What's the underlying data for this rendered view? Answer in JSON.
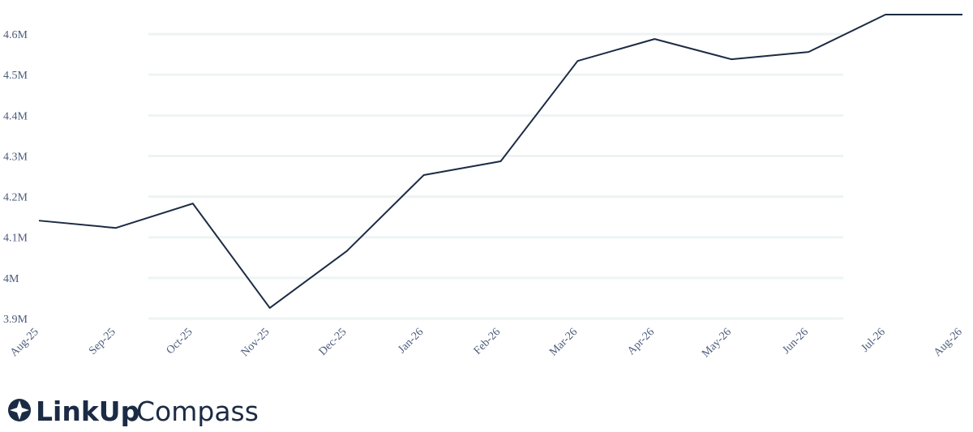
{
  "chart_data": {
    "type": "line",
    "categories": [
      "Aug-25",
      "Sep-25",
      "Oct-25",
      "Nov-25",
      "Dec-25",
      "Jan-26",
      "Feb-26",
      "Mar-26",
      "Apr-26",
      "May-26",
      "Jun-26",
      "Jul-26",
      "Aug-26"
    ],
    "values": [
      4.141,
      4.123,
      4.183,
      3.926,
      4.066,
      4.253,
      4.287,
      4.534,
      4.588,
      4.538,
      4.556,
      4.648,
      4.648
    ],
    "color": "#1c2b44",
    "ylim": [
      3.9,
      4.67
    ],
    "yticks": [
      {
        "value": 3.9,
        "label": "3.9M"
      },
      {
        "value": 4.0,
        "label": "4M"
      },
      {
        "value": 4.1,
        "label": "4.1M"
      },
      {
        "value": 4.2,
        "label": "4.2M"
      },
      {
        "value": 4.3,
        "label": "4.3M"
      },
      {
        "value": 4.4,
        "label": "4.4M"
      },
      {
        "value": 4.5,
        "label": "4.5M"
      },
      {
        "value": 4.6,
        "label": "4.6M"
      }
    ],
    "grid": true
  },
  "logo": {
    "bold": "LinkUp",
    "light": "Compass"
  }
}
